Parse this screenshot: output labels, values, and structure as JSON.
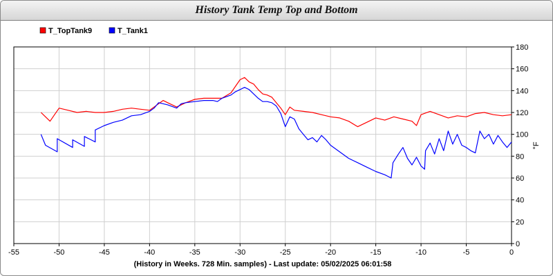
{
  "window": {
    "title": "History Tank Temp Top and Bottom"
  },
  "chart_data": {
    "type": "line",
    "title": "History Tank Temp Top and Bottom",
    "xlabel": "(History in Weeks. 728 Min. samples) - Last update: 05/02/2025 06:01:58",
    "ylabel": "°F",
    "xlim": [
      -55,
      0
    ],
    "ylim": [
      0,
      180
    ],
    "x_ticks": [
      "-55",
      "-50",
      "-45",
      "-40",
      "-35",
      "-30",
      "-25",
      "-20",
      "-15",
      "-10",
      "-5",
      "0"
    ],
    "y_ticks": [
      "0",
      "20",
      "40",
      "60",
      "80",
      "100",
      "120",
      "140",
      "160",
      "180"
    ],
    "grid": true,
    "legend_position": "top-left",
    "series": [
      {
        "name": "T_TopTank9",
        "color": "#ff0000",
        "x": [
          -52,
          -51.5,
          -51,
          -50.5,
          -50,
          -49,
          -48,
          -47,
          -46,
          -45,
          -44,
          -43,
          -42,
          -41,
          -40,
          -39,
          -38.5,
          -38,
          -37,
          -36,
          -35,
          -34,
          -33,
          -32,
          -31,
          -30.5,
          -30,
          -29.5,
          -29,
          -28.5,
          -28,
          -27.5,
          -27,
          -26.5,
          -26,
          -25.5,
          -25,
          -24.5,
          -24,
          -23,
          -22,
          -21,
          -20,
          -19,
          -18,
          -17,
          -16,
          -15,
          -14,
          -13,
          -12,
          -11,
          -10.5,
          -10,
          -9,
          -8,
          -7,
          -6,
          -5,
          -4,
          -3,
          -2,
          -1,
          0
        ],
        "y": [
          120,
          116,
          112,
          118,
          124,
          122,
          120,
          121,
          120,
          120,
          121,
          123,
          124,
          123,
          122,
          128,
          131,
          129,
          125,
          129,
          132,
          133,
          133,
          133,
          138,
          144,
          150,
          152,
          148,
          146,
          141,
          137,
          136,
          134,
          129,
          124,
          118,
          125,
          122,
          121,
          120,
          118,
          116,
          115,
          112,
          107,
          111,
          115,
          113,
          116,
          114,
          112,
          108,
          118,
          121,
          118,
          115,
          117,
          116,
          119,
          120,
          118,
          117,
          118
        ]
      },
      {
        "name": "T_Tank1",
        "color": "#0000ff",
        "x": [
          -52,
          -51.5,
          -51.5,
          -50.2,
          -50.2,
          -48.5,
          -48.5,
          -47.2,
          -47.2,
          -46,
          -46,
          -45,
          -44,
          -43,
          -42,
          -41,
          -40,
          -39.5,
          -39,
          -38,
          -37,
          -36.5,
          -36,
          -35,
          -34,
          -33,
          -32.5,
          -32,
          -31,
          -30.5,
          -30,
          -29.5,
          -29,
          -28.5,
          -28,
          -27.5,
          -27,
          -26.5,
          -26,
          -25.5,
          -25,
          -24.5,
          -24,
          -23.5,
          -23,
          -22.5,
          -22,
          -21.5,
          -21,
          -20.5,
          -20,
          -19,
          -18,
          -17,
          -16,
          -15,
          -14,
          -13.3,
          -13.1,
          -12.5,
          -12,
          -11.5,
          -11,
          -10.5,
          -10,
          -9.6,
          -9.5,
          -9,
          -8.5,
          -8,
          -7.5,
          -7,
          -6.5,
          -6,
          -5.5,
          -5,
          -4.5,
          -4,
          -3.5,
          -3,
          -2.5,
          -2,
          -1.5,
          -1,
          -0.5,
          0
        ],
        "y": [
          100,
          90,
          90,
          84,
          96,
          88,
          95,
          89,
          98,
          93,
          104,
          108,
          111,
          113,
          117,
          118,
          121,
          124,
          129,
          127,
          124,
          128,
          129,
          130,
          131,
          131,
          130,
          133,
          136,
          139,
          141,
          143,
          141,
          137,
          133,
          130,
          130,
          129,
          126,
          119,
          107,
          116,
          114,
          105,
          100,
          95,
          97,
          93,
          99,
          95,
          90,
          84,
          78,
          74,
          70,
          66,
          63,
          60,
          74,
          82,
          88,
          78,
          72,
          79,
          71,
          68,
          85,
          92,
          82,
          96,
          85,
          103,
          91,
          100,
          90,
          88,
          85,
          83,
          103,
          96,
          100,
          91,
          99,
          93,
          88,
          93
        ]
      }
    ]
  }
}
